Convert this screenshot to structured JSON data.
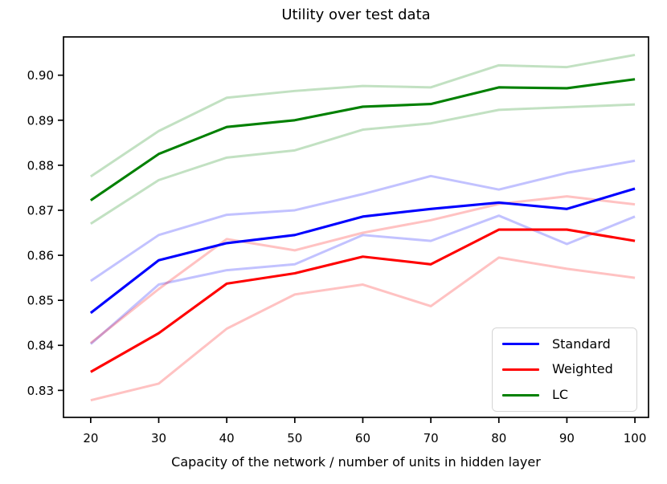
{
  "title": "Utility over test data",
  "chart_data": {
    "type": "line",
    "title": "Utility over test data",
    "xlabel": "Capacity of the network / number of units in hidden layer",
    "ylabel": "",
    "grid": false,
    "x": [
      20,
      30,
      40,
      50,
      60,
      70,
      80,
      90,
      100
    ],
    "xticks": [
      20,
      30,
      40,
      50,
      60,
      70,
      80,
      90,
      100
    ],
    "yticks": [
      0.83,
      0.84,
      0.85,
      0.86,
      0.87,
      0.88,
      0.89,
      0.9
    ],
    "xlim": [
      16,
      102
    ],
    "ylim": [
      0.824,
      0.9085
    ],
    "legend": {
      "position": "lower right",
      "entries": [
        "Standard",
        "Weighted",
        "LC"
      ]
    },
    "series": [
      {
        "name": "Standard",
        "color": "#0000ff",
        "band_color": "rgba(0,0,255,0.24)",
        "values": [
          0.8472,
          0.8589,
          0.8627,
          0.8645,
          0.8686,
          0.8703,
          0.8717,
          0.8703,
          0.8748
        ],
        "band_upper": [
          0.8543,
          0.8645,
          0.869,
          0.87,
          0.8736,
          0.8776,
          0.8746,
          0.8783,
          0.881
        ],
        "band_lower": [
          0.8403,
          0.8535,
          0.8567,
          0.858,
          0.8645,
          0.8632,
          0.8688,
          0.8625,
          0.8686
        ]
      },
      {
        "name": "Weighted",
        "color": "#ff0000",
        "band_color": "rgba(255,0,0,0.24)",
        "values": [
          0.8341,
          0.8427,
          0.8537,
          0.856,
          0.8597,
          0.858,
          0.8657,
          0.8657,
          0.8632
        ],
        "band_upper": [
          0.8405,
          0.8525,
          0.8636,
          0.8611,
          0.865,
          0.8678,
          0.8714,
          0.8731,
          0.8713
        ],
        "band_lower": [
          0.8278,
          0.8315,
          0.8437,
          0.8513,
          0.8535,
          0.8487,
          0.8595,
          0.857,
          0.855
        ]
      },
      {
        "name": "LC",
        "color": "#008000",
        "band_color": "rgba(0,128,0,0.24)",
        "values": [
          0.8722,
          0.8825,
          0.8885,
          0.89,
          0.893,
          0.8936,
          0.8973,
          0.8971,
          0.8991
        ],
        "band_upper": [
          0.8775,
          0.8876,
          0.895,
          0.8965,
          0.8976,
          0.8973,
          0.9022,
          0.9018,
          0.9045
        ],
        "band_lower": [
          0.867,
          0.8767,
          0.8817,
          0.8833,
          0.8879,
          0.8893,
          0.8923,
          0.8929,
          0.8935
        ]
      }
    ]
  }
}
